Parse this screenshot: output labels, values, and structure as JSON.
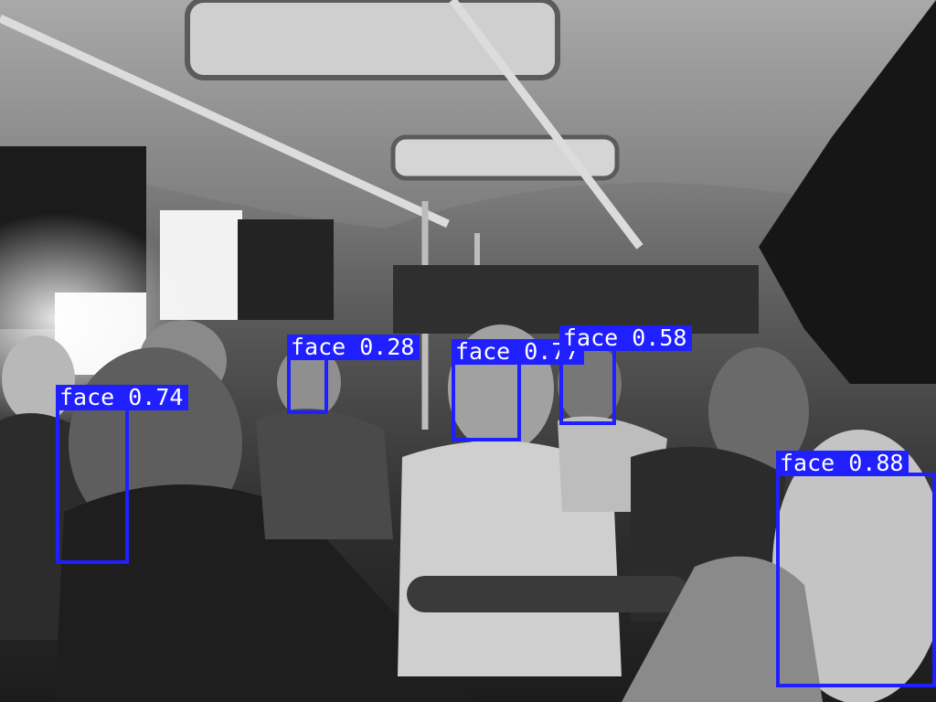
{
  "image": {
    "subject": "black-and-white photo of bus passengers seated inside a minibus",
    "colors": {
      "box": "#1f1fff",
      "label_text": "#ffffff"
    }
  },
  "detections": [
    {
      "label": "face 0.74",
      "class": "face",
      "score": 0.74
    },
    {
      "label": "face 0.28",
      "class": "face",
      "score": 0.28
    },
    {
      "label": "face 0.77",
      "class": "face",
      "score": 0.77
    },
    {
      "label": "face 0.58",
      "class": "face",
      "score": 0.58
    },
    {
      "label": "face 0.88",
      "class": "face",
      "score": 0.88
    }
  ]
}
